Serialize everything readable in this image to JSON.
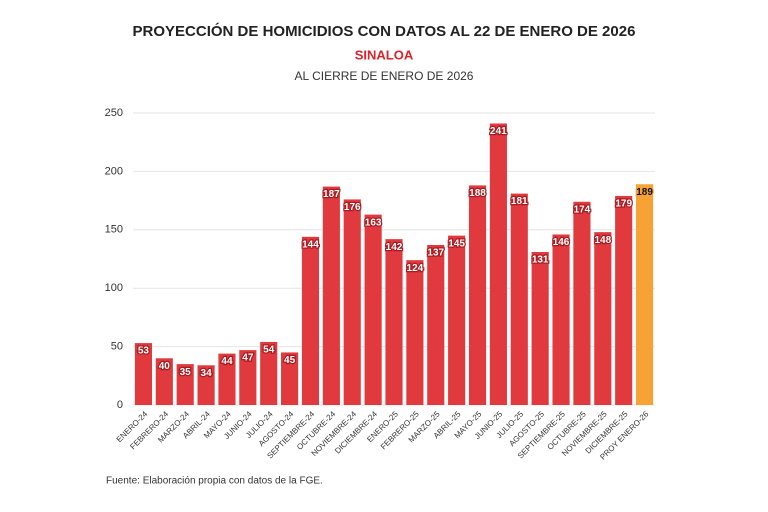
{
  "chart_data": {
    "type": "bar",
    "title": "PROYECCIÓN DE HOMICIDIOS CON DATOS AL 22 DE ENERO DE 2026",
    "subtitle": "SINALOA",
    "note": "AL CIERRE DE ENERO DE 2026",
    "source": "Fuente: Elaboración propia con datos de la FGE.",
    "categories": [
      "ENERO-24",
      "FEBRERO-24",
      "MARZO-24",
      "ABRIL-24",
      "MAYO-24",
      "JUNIO-24",
      "JULIO-24",
      "AGOSTO-24",
      "SEPTIEMBRE-24",
      "OCTUBRE-24",
      "NOVIEMBRE-24",
      "DICIEMBRE-24",
      "ENERO-25",
      "FEBRERO-25",
      "MARZO-25",
      "ABRIL-25",
      "MAYO-25",
      "JUNIO-25",
      "JULIO-25",
      "AGOSTO-25",
      "SEPTIEMBRE-25",
      "OCTUBRE-25",
      "NOVIEMBRE-25",
      "DICIEMBRE-25",
      "PROY ENERO-26"
    ],
    "values": [
      53,
      40,
      35,
      34,
      44,
      47,
      54,
      45,
      144,
      187,
      176,
      163,
      142,
      124,
      137,
      145,
      188,
      241,
      181,
      131,
      146,
      174,
      148,
      179,
      189
    ],
    "colors": [
      "#e0393e",
      "#e0393e",
      "#e0393e",
      "#e0393e",
      "#e0393e",
      "#e0393e",
      "#e0393e",
      "#e0393e",
      "#e0393e",
      "#e0393e",
      "#e0393e",
      "#e0393e",
      "#e0393e",
      "#e0393e",
      "#e0393e",
      "#e0393e",
      "#e0393e",
      "#e0393e",
      "#e0393e",
      "#e0393e",
      "#e0393e",
      "#e0393e",
      "#e0393e",
      "#e0393e",
      "#f7a234"
    ],
    "ylim": [
      0,
      250
    ],
    "yticks": [
      0,
      50,
      100,
      150,
      200,
      250
    ],
    "grid": true
  }
}
